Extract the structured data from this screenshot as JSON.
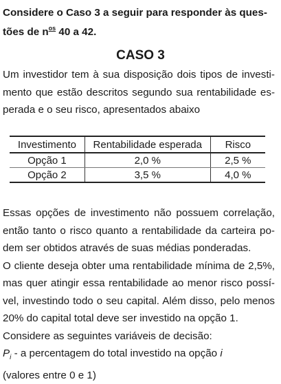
{
  "intro": {
    "line1": "Considere o Caso 3 a seguir para responder às ques-",
    "line2_prefix": "tões de n",
    "line2_sup": "os",
    "line2_suffix": " 40 a 42."
  },
  "case_title": "CASO 3",
  "paragraph1": [
    "Um investidor tem à sua disposição dois tipos de investi-",
    "mento que estão descritos segundo sua rentabilidade es-",
    "perada e o seu risco, apresentados abaixo"
  ],
  "table": {
    "headers": [
      "Investimento",
      "Rentabilidade esperada",
      "Risco"
    ],
    "rows": [
      [
        "Opção 1",
        "2,0 %",
        "2,5 %"
      ],
      [
        "Opção 2",
        "3,5 %",
        "4,0 %"
      ]
    ]
  },
  "paragraph2": [
    "Essas opções de investimento não possuem correlação,",
    "então tanto o risco quanto a rentabilidade da carteira po-",
    "dem ser obtidos através de suas médias ponderadas.",
    "O cliente deseja obter uma rentabilidade mínima de 2,5%,",
    "mas quer atingir essa rentabilidade ao menor risco possí-",
    "vel, investindo todo o seu capital. Além disso, pelo menos",
    "20% do capital total deve ser investido na opção 1.",
    "Considere as seguintes variáveis de decisão:"
  ],
  "variable": {
    "symbol": "P",
    "subscript": "i",
    "description": " - a percentagem do total investido na opção ",
    "index": "i",
    "range_note": "(valores entre 0 e 1)"
  }
}
